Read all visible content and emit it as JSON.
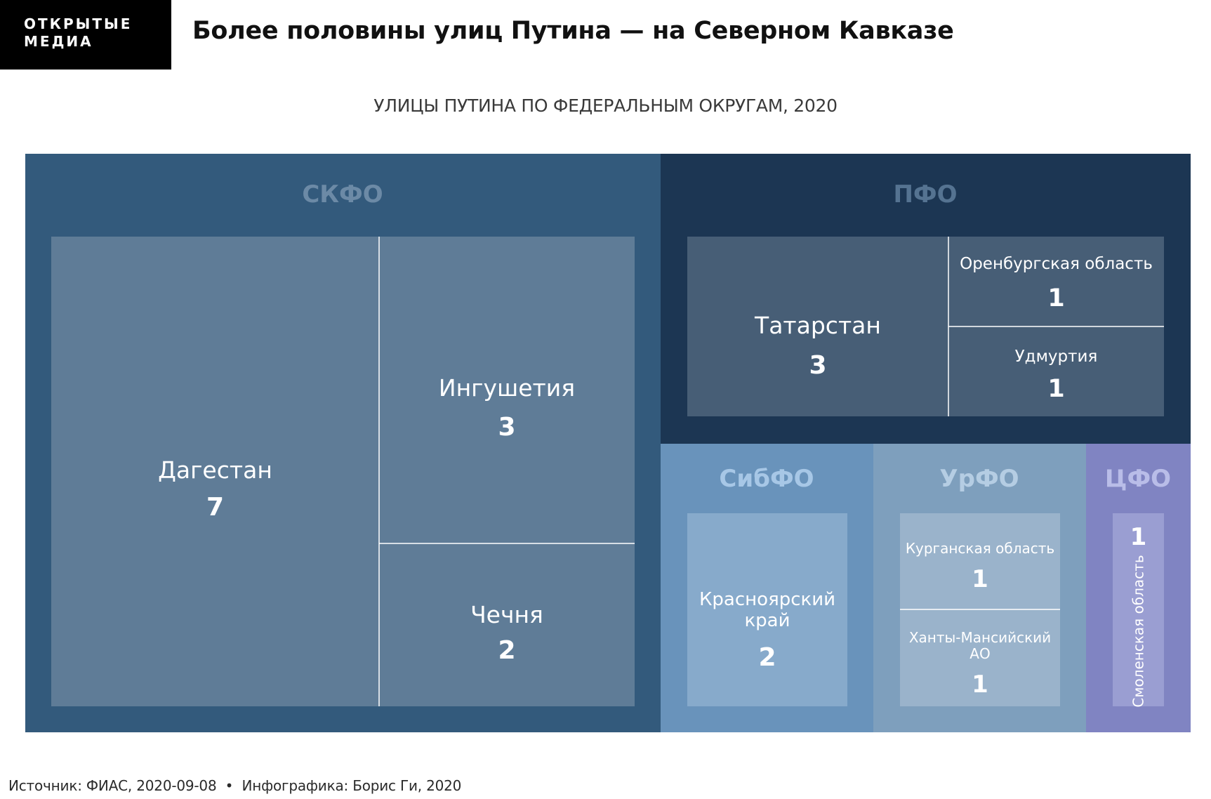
{
  "header": {
    "logo_line1": "ОТКРЫТЫЕ",
    "logo_line2": "МЕДИА",
    "headline": "Более половины улиц Путина — на Северном Кавказе"
  },
  "footer": {
    "source": "Источник: ФИАС, 2020-09-08",
    "separator": "•",
    "credit": "Инфографика: Борис Ги, 2020"
  },
  "chart_data": {
    "type": "treemap",
    "title": "УЛИЦЫ ПУТИНА ПО ФЕДЕРАЛЬНЫМ ОКРУГАМ, 2020",
    "groups": [
      {
        "name": "СКФО",
        "color": "#335a7c",
        "label_color": "#6c8aa6",
        "leaf_color": "#5f7c97",
        "children": [
          {
            "name": "Дагестан",
            "value": 7
          },
          {
            "name": "Ингушетия",
            "value": 3
          },
          {
            "name": "Чечня",
            "value": 2
          }
        ]
      },
      {
        "name": "ПФО",
        "color": "#1c3653",
        "label_color": "#557391",
        "leaf_color": "#475e76",
        "children": [
          {
            "name": "Татарстан",
            "value": 3
          },
          {
            "name": "Оренбургская область",
            "value": 1
          },
          {
            "name": "Удмуртия",
            "value": 1
          }
        ]
      },
      {
        "name": "СибФО",
        "color": "#6993bb",
        "label_color": "#a7c7e6",
        "leaf_color": "#87aacb",
        "children": [
          {
            "name": "Красноярский край",
            "value": 2
          }
        ]
      },
      {
        "name": "УрФО",
        "color": "#7e9fbd",
        "label_color": "#b5cde3",
        "leaf_color": "#9ab3cb",
        "children": [
          {
            "name": "Курганская область",
            "value": 1
          },
          {
            "name": "Ханты-Мансийский АО",
            "value": 1
          }
        ]
      },
      {
        "name": "ЦФО",
        "color": "#8084c2",
        "label_color": "#b9bde8",
        "leaf_color": "#9a9ed2",
        "children": [
          {
            "name": "Смоленская область",
            "value": 1
          }
        ]
      }
    ]
  }
}
